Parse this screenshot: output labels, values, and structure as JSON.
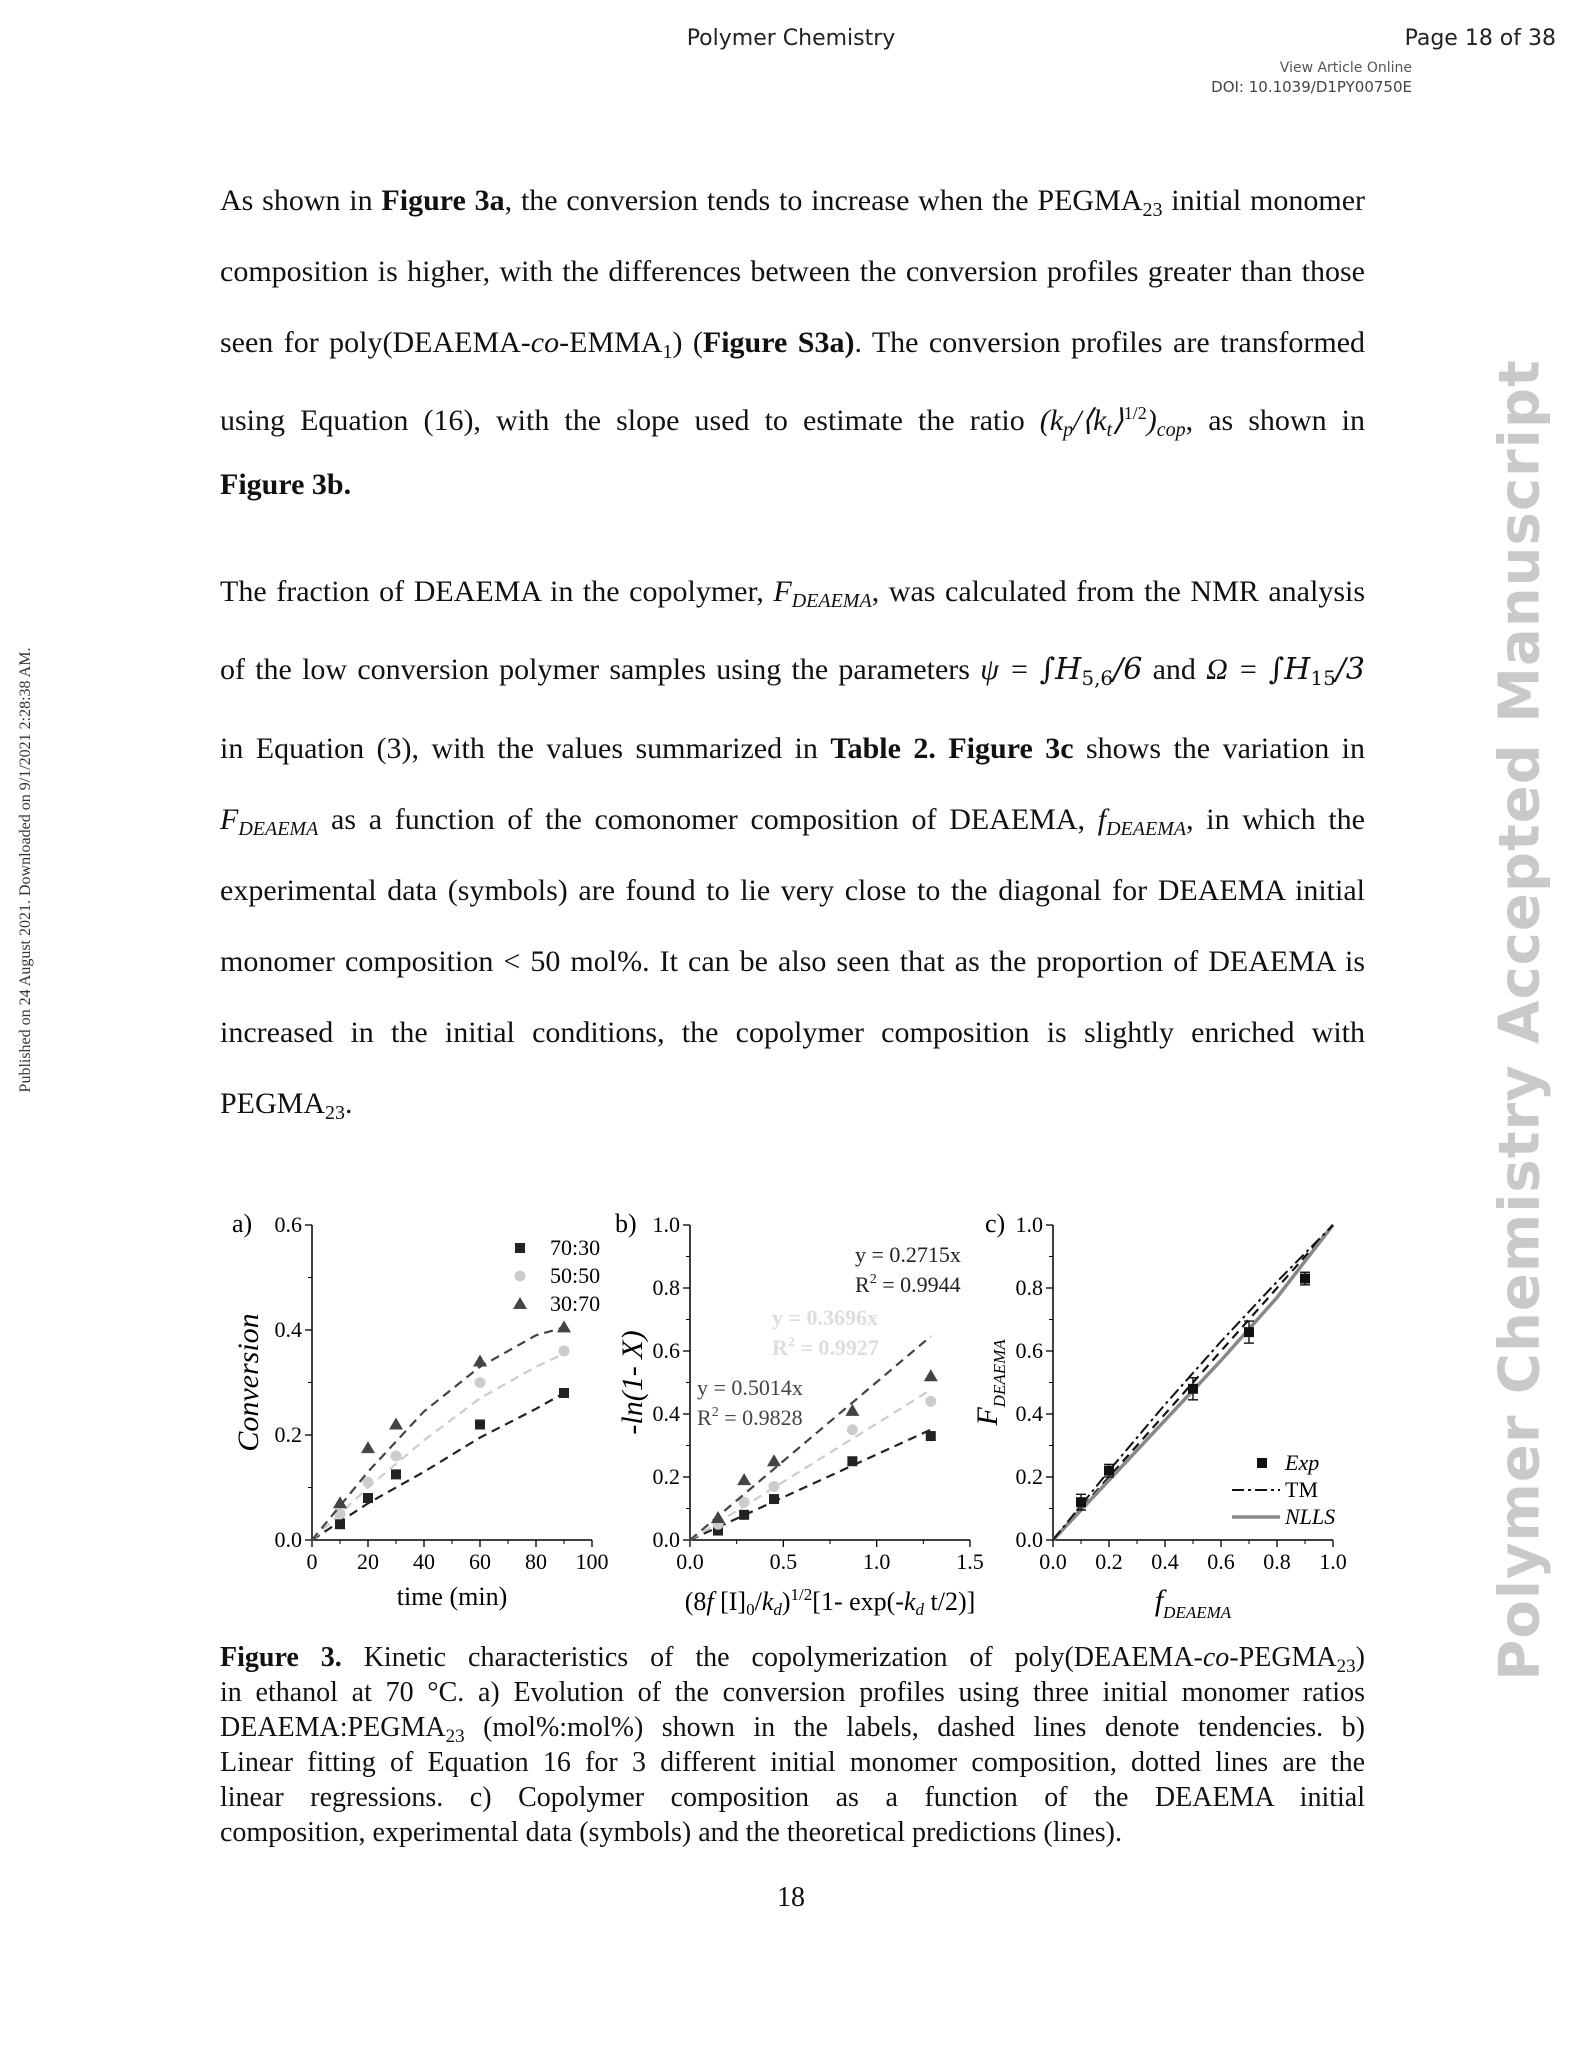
{
  "header": {
    "journal": "Polymer Chemistry",
    "page": "Page 18 of 38",
    "view_online": "View Article Online",
    "doi": "DOI: 10.1039/D1PY00750E"
  },
  "side_left": "Published on 24 August 2021. Downloaded on 9/1/2021 2:28:38 AM.",
  "side_right": "Polymer Chemistry Accepted Manuscript",
  "p1": {
    "l1a": "As shown in ",
    "l1b": "Figure 3a",
    "l1c": ", the conversion tends to increase when the PEGMA",
    "l1sub": "23",
    "l1d": " initial monomer",
    "l2": "composition is higher, with the differences between the conversion profiles greater than those",
    "l3a": "seen for poly(DEAEMA-",
    "l3b": "co",
    "l3c": "-EMMA",
    "l3sub": "1",
    "l3d": ") (",
    "l3e": "Figure S3a)",
    "l3f": ". The conversion profiles are transformed",
    "l4a": "using Equation (16), with the slope used to estimate the ratio ",
    "l4math": "(k",
    "l4p": "p",
    "l4mid": "/⟨k",
    "l4t": "t",
    "l4close": "⟩",
    "l4exp": "1/2",
    "l4end": ")",
    "l4cop": "cop",
    "l4b": ", as shown in",
    "l5": "Figure 3b."
  },
  "p2": {
    "l1a": "The fraction of DEAEMA in the copolymer, ",
    "l1b": "F",
    "l1sub": "DEAEMA",
    "l1c": ", was calculated from the NMR analysis",
    "l2a": "of the low conversion polymer samples using the parameters ",
    "l2psi": "ψ = ",
    "l2int1": "∫H",
    "l2h1": "5,6",
    "l2d1": "/6",
    "l2and": " and ",
    "l2om": "Ω = ",
    "l2int2": "∫H",
    "l2h2": "15",
    "l2d2": "/3",
    "l3a": "in Equation (3), with the values summarized in ",
    "l3b": "Table 2. Figure 3c",
    "l3c": " shows the variation in",
    "l4a": "F",
    "l4sub": "DEAEMA",
    "l4b": " as a function of the comonomer composition of DEAEMA, ",
    "l4c": "f",
    "l4sub2": "DEAEMA",
    "l4d": ", in which the",
    "l5": "experimental data (symbols) are found to lie very close to the diagonal for DEAEMA initial",
    "l6": "monomer composition < 50 mol%. It can be also seen that as the proportion of DEAEMA is",
    "l7": "increased in the initial conditions, the copolymer composition is slightly enriched with",
    "l8a": "PEGMA",
    "l8sub": "23",
    "l8b": "."
  },
  "chart_data": [
    {
      "type": "scatter",
      "panel_label": "a)",
      "xlabel": "time (min)",
      "ylabel": "Conversion",
      "xlim": [
        0,
        100
      ],
      "ylim": [
        0,
        0.6
      ],
      "xticks": [
        "0",
        "20",
        "40",
        "60",
        "80",
        "100"
      ],
      "yticks": [
        "0.0",
        "0.2",
        "0.4",
        "0.6"
      ],
      "series": [
        {
          "name": "70:30",
          "marker": "square",
          "color": "#222222",
          "x": [
            10,
            20,
            30,
            60,
            90
          ],
          "y": [
            0.03,
            0.08,
            0.125,
            0.22,
            0.28
          ],
          "trend": [
            [
              0,
              0
            ],
            [
              20,
              0.07
            ],
            [
              40,
              0.13
            ],
            [
              60,
              0.195
            ],
            [
              80,
              0.25
            ],
            [
              90,
              0.28
            ]
          ]
        },
        {
          "name": "50:50",
          "marker": "circle",
          "color": "#cccccc",
          "x": [
            10,
            20,
            30,
            60,
            90
          ],
          "y": [
            0.05,
            0.11,
            0.16,
            0.3,
            0.36
          ],
          "trend": [
            [
              0,
              0
            ],
            [
              20,
              0.1
            ],
            [
              40,
              0.19
            ],
            [
              60,
              0.27
            ],
            [
              80,
              0.33
            ],
            [
              90,
              0.355
            ]
          ]
        },
        {
          "name": "30:70",
          "marker": "triangle",
          "color": "#444444",
          "x": [
            10,
            20,
            30,
            60,
            90
          ],
          "y": [
            0.07,
            0.175,
            0.22,
            0.34,
            0.405
          ],
          "trend": [
            [
              0,
              0
            ],
            [
              20,
              0.13
            ],
            [
              40,
              0.245
            ],
            [
              60,
              0.33
            ],
            [
              80,
              0.39
            ],
            [
              90,
              0.405
            ]
          ]
        }
      ]
    },
    {
      "type": "scatter",
      "panel_label": "b)",
      "xlabel_parts": [
        "(8",
        "f",
        " [I]",
        "0",
        "/",
        "k",
        "d",
        ")",
        "1/2",
        "[1- exp(-",
        "k",
        "d",
        " t/2)]"
      ],
      "ylabel": "-ln(1- X)",
      "xlim": [
        0,
        1.5
      ],
      "ylim": [
        0,
        1.0
      ],
      "xticks": [
        "0.0",
        "0.5",
        "1.0",
        "1.5"
      ],
      "yticks": [
        "0.0",
        "0.2",
        "0.4",
        "0.6",
        "0.8",
        "1.0"
      ],
      "series": [
        {
          "marker": "square",
          "color": "#222222",
          "x": [
            0,
            0.15,
            0.29,
            0.45,
            0.87,
            1.29
          ],
          "y": [
            0,
            0.03,
            0.08,
            0.13,
            0.25,
            0.33
          ],
          "slope": 0.2715
        },
        {
          "marker": "circle",
          "color": "#cccccc",
          "x": [
            0,
            0.15,
            0.29,
            0.45,
            0.87,
            1.29
          ],
          "y": [
            0,
            0.05,
            0.12,
            0.17,
            0.35,
            0.44
          ],
          "slope": 0.3696
        },
        {
          "marker": "triangle",
          "color": "#444444",
          "x": [
            0,
            0.15,
            0.29,
            0.45,
            0.87,
            1.29
          ],
          "y": [
            0,
            0.07,
            0.19,
            0.25,
            0.41,
            0.52
          ],
          "slope": 0.5014
        }
      ],
      "annotations": [
        {
          "eq": "y = 0.2715x",
          "r2": "= 0.9944",
          "color": "#222222"
        },
        {
          "eq": "y = 0.3696x",
          "r2": "= 0.9927",
          "color": "#dddddd"
        },
        {
          "eq": "y = 0.5014x",
          "r2": "= 0.9828",
          "color": "#444444"
        }
      ]
    },
    {
      "type": "scatter",
      "panel_label": "c)",
      "xlabel": "f",
      "xlabel_sub": "DEAEMA",
      "ylabel": "F",
      "ylabel_sub": "DEAEMA",
      "xlim": [
        0,
        1.0
      ],
      "ylim": [
        0,
        1.0
      ],
      "xticks": [
        "0.0",
        "0.2",
        "0.4",
        "0.6",
        "0.8",
        "1.0"
      ],
      "yticks": [
        "0.0",
        "0.2",
        "0.4",
        "0.6",
        "0.8",
        "1.0"
      ],
      "series": [
        {
          "name": "Exp",
          "marker": "square",
          "color": "#111111",
          "x": [
            0.1,
            0.2,
            0.5,
            0.7,
            0.9
          ],
          "y": [
            0.12,
            0.22,
            0.48,
            0.66,
            0.83
          ],
          "err": [
            0.025,
            0.02,
            0.035,
            0.035,
            0.02
          ]
        },
        {
          "name": "TM",
          "style": "dash-dot",
          "color": "#111111",
          "x": [
            0,
            0.2,
            0.4,
            0.6,
            0.8,
            1.0
          ],
          "y": [
            0,
            0.22,
            0.43,
            0.63,
            0.82,
            1.0
          ]
        },
        {
          "name": "NLLS",
          "style": "solid",
          "color": "#888888",
          "x": [
            0,
            0.2,
            0.4,
            0.6,
            0.8,
            1.0
          ],
          "y": [
            0,
            0.19,
            0.38,
            0.57,
            0.77,
            1.0
          ]
        }
      ],
      "diagonal": [
        [
          0,
          0
        ],
        [
          1,
          1
        ]
      ]
    }
  ],
  "caption": {
    "l1a": "Figure 3.",
    "l1b": " Kinetic characteristics of the copolymerization of poly(DEAEMA-",
    "l1c": "co",
    "l1d": "-PEGMA",
    "l1sub": "23",
    "l1e": ")",
    "l2": "in ethanol at 70 °C. a) Evolution of the conversion profiles using three initial monomer ratios",
    "l3a": "DEAEMA:PEGMA",
    "l3sub": "23",
    "l3b": " (mol%:mol%) shown in the labels, dashed lines denote tendencies. b)",
    "l4": "Linear fitting of Equation 16 for 3 different initial monomer composition, dotted lines are the",
    "l5": "linear regressions. c) Copolymer composition as a function of the DEAEMA initial",
    "l6": "composition, experimental data (symbols) and the theoretical predictions (lines)."
  },
  "footer": {
    "page_number": "18"
  }
}
